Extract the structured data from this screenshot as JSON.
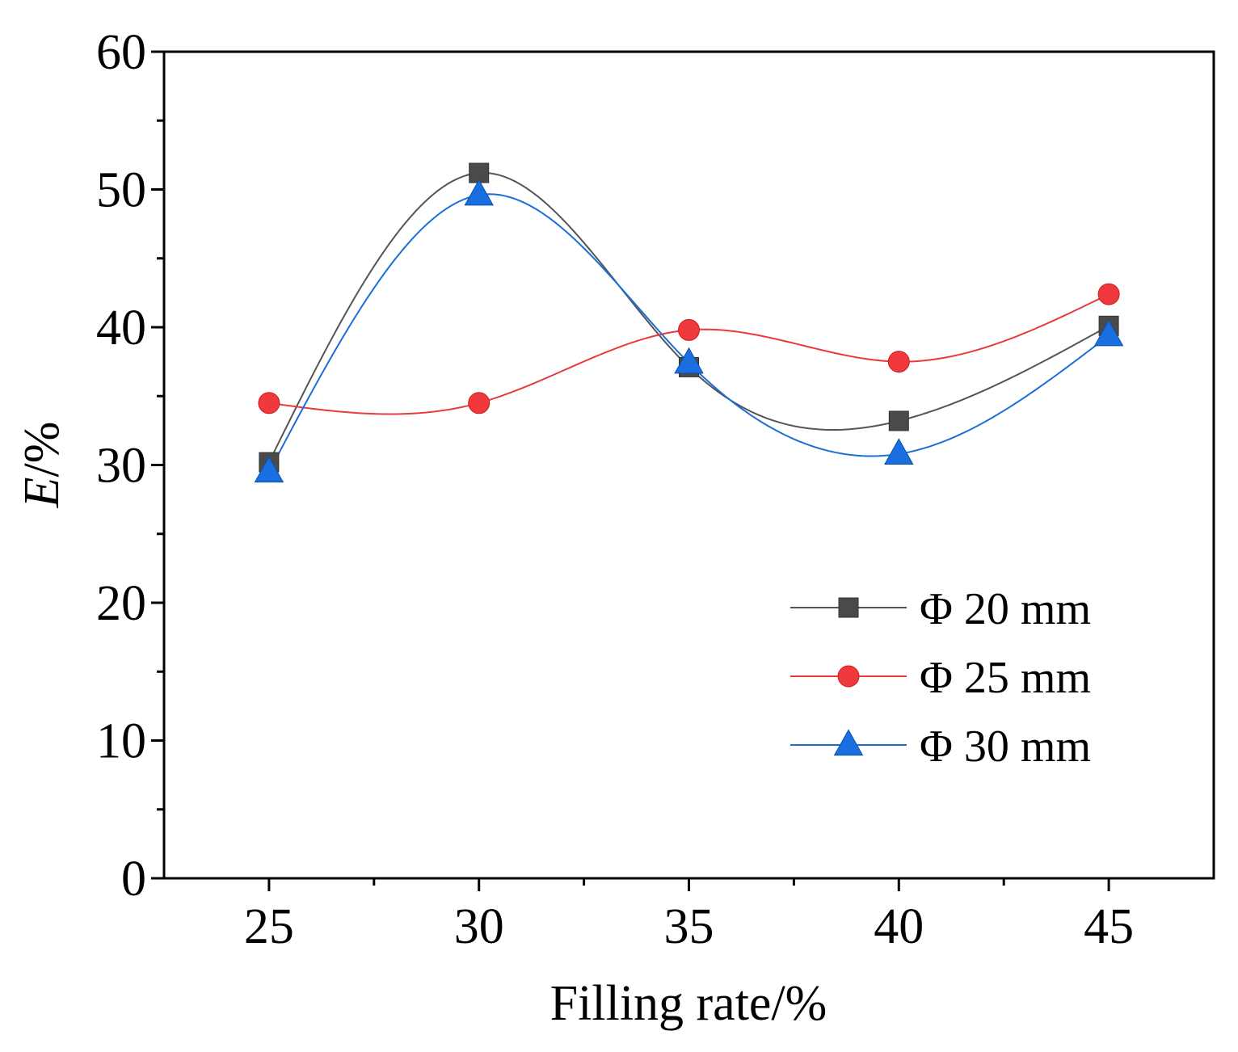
{
  "chart_data": {
    "type": "line",
    "title": "",
    "xlabel": "Filling rate/%",
    "ylabel_main": "E",
    "ylabel_unit": "/%",
    "xlim": [
      22.5,
      47.5
    ],
    "ylim": [
      0,
      60
    ],
    "x_ticks": [
      25,
      30,
      35,
      40,
      45
    ],
    "y_ticks": [
      0,
      10,
      20,
      30,
      40,
      50,
      60
    ],
    "x_minor_ticks": [
      27.5,
      32.5,
      37.5,
      42.5
    ],
    "y_minor_ticks": [
      5,
      15,
      25,
      35,
      45,
      55
    ],
    "x": [
      25,
      30,
      35,
      40,
      45
    ],
    "legend_position": "bottom-right",
    "series": [
      {
        "name": "Φ 20 mm",
        "marker": "square",
        "line_color": "#555555",
        "marker_color": "#4a4a4a",
        "values": [
          30.2,
          51.2,
          37.1,
          33.2,
          40.1
        ]
      },
      {
        "name": "Φ 25 mm",
        "marker": "circle",
        "line_color": "#e8393d",
        "marker_color": "#f0393d",
        "values": [
          34.5,
          34.5,
          39.8,
          37.5,
          42.4
        ]
      },
      {
        "name": "Φ 30 mm",
        "marker": "triangle",
        "line_color": "#1a6fd6",
        "marker_color": "#1a6fe0",
        "values": [
          29.5,
          49.6,
          37.4,
          30.8,
          39.4
        ]
      }
    ]
  }
}
